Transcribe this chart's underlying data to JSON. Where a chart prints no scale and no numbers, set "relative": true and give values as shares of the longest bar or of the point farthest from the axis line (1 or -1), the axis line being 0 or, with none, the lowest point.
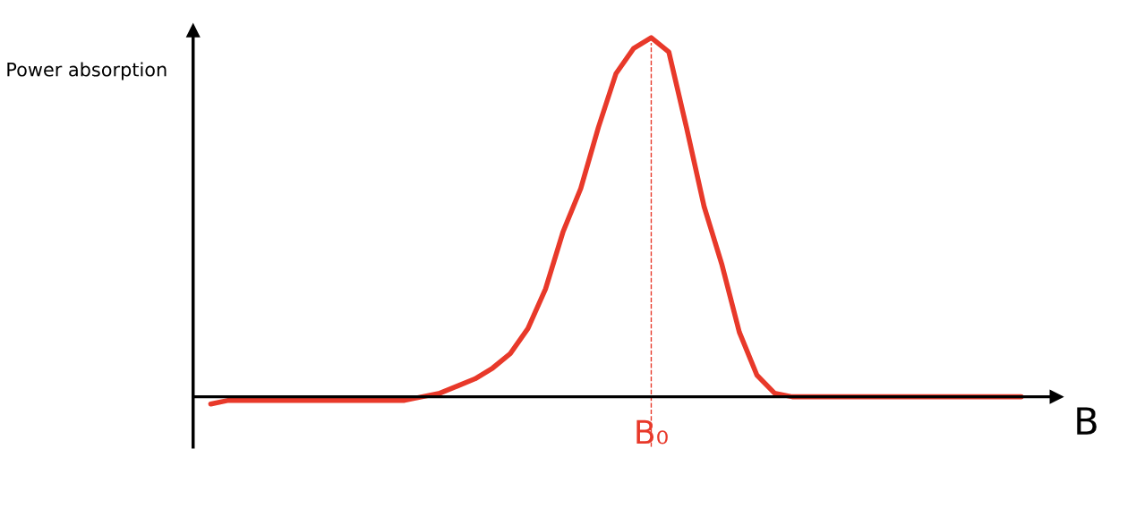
{
  "chart_data": {
    "type": "line",
    "relative": true,
    "ylabel": "Power absorption",
    "xlabel": "B",
    "categories": [
      null,
      null,
      null,
      null,
      null,
      null,
      null,
      null,
      null,
      null,
      null,
      null,
      null,
      null,
      null,
      null,
      null,
      null,
      null,
      null,
      null,
      null,
      null,
      null,
      null,
      null,
      null,
      null,
      null,
      null,
      null,
      null,
      null,
      null,
      null,
      null,
      null,
      null,
      null,
      null,
      null,
      null,
      null,
      null,
      null,
      null,
      null
    ],
    "series": [
      {
        "color": "#e8392a",
        "values": [
          -0.02,
          -0.01,
          -0.01,
          -0.01,
          -0.01,
          -0.01,
          -0.01,
          -0.01,
          -0.01,
          -0.01,
          -0.01,
          -0.01,
          0.0,
          0.01,
          0.03,
          0.05,
          0.08,
          0.12,
          0.19,
          0.3,
          0.46,
          0.58,
          0.75,
          0.9,
          0.97,
          1.0,
          0.96,
          0.75,
          0.53,
          0.37,
          0.18,
          0.06,
          0.01,
          0.0,
          0.0,
          0.0,
          0.0,
          0.0,
          0.0,
          0.0,
          0.0,
          0.0,
          0.0,
          0.0,
          0.0,
          0.0,
          0.0
        ]
      }
    ],
    "annotations": [
      "B₀"
    ],
    "legend": false,
    "marker": "none",
    "line_style": "solid"
  }
}
